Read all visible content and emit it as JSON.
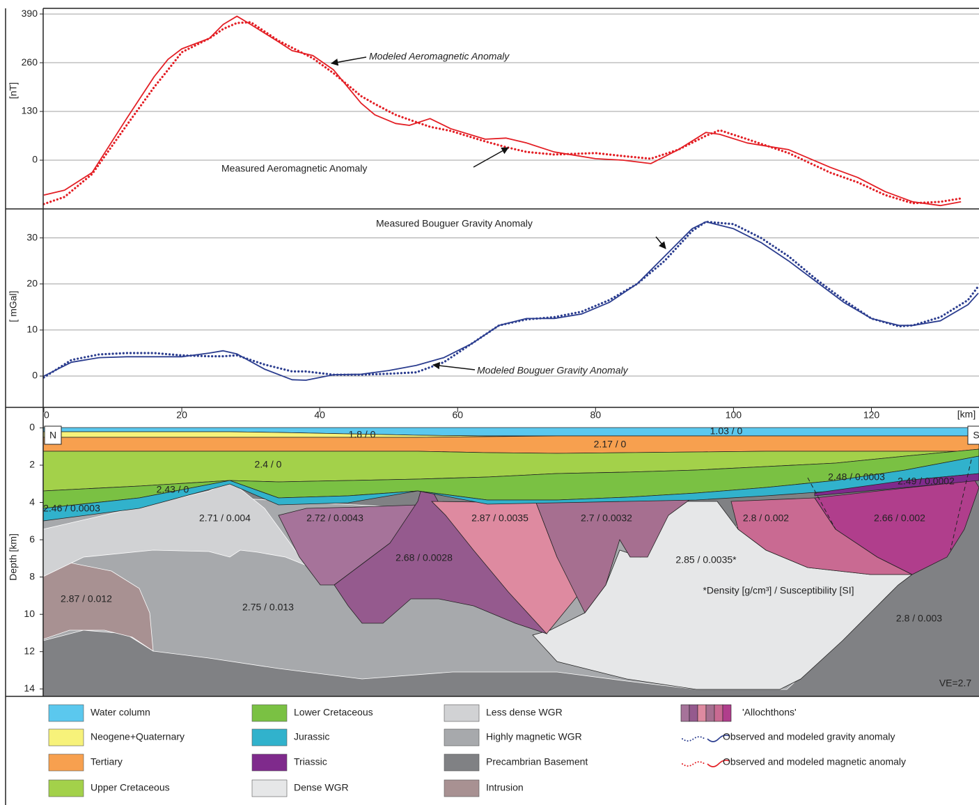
{
  "chart_data": [
    {
      "type": "line",
      "y_label": "[nT]",
      "x": [
        0,
        3,
        7,
        12,
        16,
        18,
        20,
        24,
        26,
        28,
        30,
        34,
        36,
        39,
        42,
        46,
        48,
        51,
        53,
        56,
        59,
        64,
        67,
        70,
        74,
        80,
        84,
        88,
        92,
        96,
        98,
        102,
        108,
        114,
        118,
        122,
        126,
        130,
        133
      ],
      "xlim": [
        -0.1,
        135.6
      ],
      "ylim": [
        -130,
        405
      ],
      "yticks": [
        0,
        130,
        260,
        390
      ],
      "grid": true,
      "series": [
        {
          "name": "Modeled Aeromagnetic Anomaly",
          "color": "#e31e24",
          "style": "solid",
          "values": [
            -93,
            -80,
            -33,
            111,
            223,
            269,
            297,
            325,
            362,
            384,
            362,
            316,
            292,
            279,
            241,
            152,
            121,
            98,
            93,
            111,
            84,
            56,
            59,
            46,
            22,
            4,
            0,
            -9,
            28,
            74,
            69,
            46,
            28,
            -19,
            -46,
            -84,
            -111,
            -121,
            -111
          ]
        },
        {
          "name": "Measured Aeromagnetic Anomaly",
          "color": "#e31e24",
          "style": "dotted",
          "values": [
            -117,
            -98,
            -37,
            93,
            195,
            241,
            288,
            325,
            350,
            366,
            368,
            319,
            300,
            272,
            232,
            171,
            150,
            121,
            108,
            89,
            78,
            50,
            35,
            22,
            15,
            19,
            11,
            4,
            28,
            65,
            80,
            56,
            19,
            -33,
            -59,
            -93,
            -115,
            -111,
            -102
          ]
        }
      ]
    },
    {
      "type": "line",
      "y_label": "[ mGal]",
      "x": [
        0,
        4,
        8,
        12,
        16,
        20,
        24,
        26,
        28,
        32,
        36,
        38,
        42,
        46,
        50,
        54,
        58,
        62,
        66,
        70,
        74,
        78,
        82,
        86,
        90,
        94,
        96,
        100,
        104,
        108,
        112,
        116,
        120,
        124,
        126,
        130,
        134,
        135.5
      ],
      "xlim": [
        -0.1,
        135.6
      ],
      "ylim": [
        -6.8,
        36.3
      ],
      "yticks": [
        0,
        10,
        20,
        30
      ],
      "grid": true,
      "series": [
        {
          "name": "Measured Bouguer Gravity Anomaly",
          "color": "#2b3d8f",
          "style": "solid",
          "values": [
            0,
            3,
            4,
            4.2,
            4.2,
            4.2,
            5,
            5.5,
            4.8,
            1.5,
            -0.8,
            -0.9,
            0.3,
            0.4,
            1.2,
            2.3,
            4,
            7,
            11,
            12.5,
            12.5,
            13.5,
            16,
            20,
            26,
            32,
            33.5,
            32,
            29,
            25,
            20.5,
            16,
            12.5,
            11,
            11,
            12,
            15.5,
            18
          ]
        },
        {
          "name": "Modeled Bouguer Gravity Anomaly",
          "color": "#2b3d8f",
          "style": "dotted",
          "values": [
            -0.3,
            3.5,
            4.7,
            5,
            5,
            4.5,
            4.3,
            4.3,
            4.5,
            2.5,
            1,
            1,
            0.3,
            0.3,
            0.5,
            0.8,
            3,
            7,
            11,
            12.3,
            12.8,
            14,
            16.5,
            20,
            25,
            31.5,
            33.5,
            33,
            30,
            26,
            21,
            16.5,
            12.5,
            10.8,
            11,
            12.8,
            16.5,
            19.5
          ]
        }
      ]
    },
    {
      "type": "section",
      "x_label": "[km]",
      "y_label": "Depth [km]",
      "xlim": [
        -0.1,
        135.6
      ],
      "xticks": [
        0,
        20,
        40,
        60,
        80,
        100,
        120
      ],
      "ylim": [
        -1.1,
        14.4
      ],
      "yticks": [
        0,
        2,
        4,
        6,
        8,
        10,
        12,
        14
      ],
      "north": "N",
      "south": "S",
      "labels": [
        "1.8 / 0",
        "1.03 / 0",
        "2.17 / 0",
        "2.4 / 0",
        "2.43 / 0",
        "2.46 / 0.0003",
        "2.48 / 0.0003",
        "2.49 / 0.0002",
        "2.71 / 0.004",
        "2.72 / 0.0043",
        "2.87 / 0.0035",
        "2.7 / 0.0032",
        "2.8 / 0.002",
        "2.66 / 0.002",
        "2.68 / 0.0028",
        "2.85 / 0.0035*",
        "2.87 / 0.012",
        "2.75 / 0.013",
        "2.8 / 0.003"
      ],
      "note": "*Density [g/cm³] / Susceptibility [SI]",
      "ve": "VE=2.7"
    }
  ],
  "legend": [
    {
      "label": "Water column",
      "color": "#5bc8ee"
    },
    {
      "label": "Neogene+Quaternary",
      "color": "#f7f27a"
    },
    {
      "label": "Tertiary",
      "color": "#f7a04f"
    },
    {
      "label": "Upper Cretaceous",
      "color": "#a3d14a"
    },
    {
      "label": "Lower Cretaceous",
      "color": "#7ac143"
    },
    {
      "label": "Jurassic",
      "color": "#31b2cc"
    },
    {
      "label": "Triassic",
      "color": "#7f2a8c"
    },
    {
      "label": "Dense WGR",
      "color": "#e6e7e8"
    },
    {
      "label": "Less dense WGR",
      "color": "#d1d2d4"
    },
    {
      "label": "Highly magnetic WGR",
      "color": "#a7a9ac"
    },
    {
      "label": "Precambrian Basement",
      "color": "#808184"
    },
    {
      "label": "Intrusion",
      "color": "#a89192"
    },
    {
      "label": "'Allochthons'",
      "colors": [
        "#a6739a",
        "#955a8e",
        "#de8aa0",
        "#a66f90",
        "#c96a92",
        "#b03e8c"
      ]
    },
    {
      "label": "Observed and modeled gravity anomaly",
      "line": "#2b3d8f"
    },
    {
      "label": "Observed and modeled magnetic anomaly",
      "line": "#e31e24"
    }
  ]
}
